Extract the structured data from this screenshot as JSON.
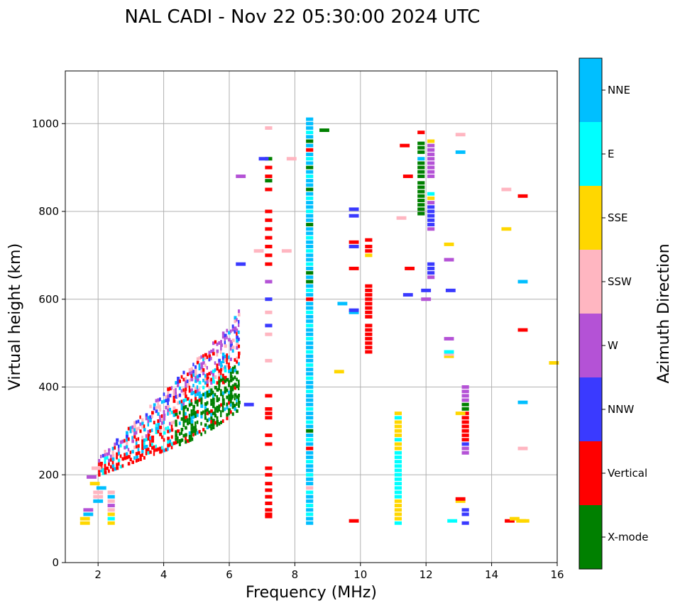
{
  "chart_data": {
    "type": "scatter",
    "title": "NAL CADI - Nov 22 05:30:00 2024 UTC",
    "xlabel": "Frequency (MHz)",
    "ylabel": "Virtual height (km)",
    "xlim": [
      1,
      16
    ],
    "ylim": [
      0,
      1120
    ],
    "xticks": [
      2,
      4,
      6,
      8,
      10,
      12,
      14,
      16
    ],
    "yticks": [
      0,
      200,
      400,
      600,
      800,
      1000
    ],
    "grid": true,
    "colorbar": {
      "label": "Azimuth Direction",
      "categories": [
        {
          "name": "X-mode",
          "color": "#008000"
        },
        {
          "name": "Vertical",
          "color": "#ff0000"
        },
        {
          "name": "NNW",
          "color": "#3a3aff"
        },
        {
          "name": "W",
          "color": "#b452d6"
        },
        {
          "name": "SSW",
          "color": "#ffb6c1"
        },
        {
          "name": "SSE",
          "color": "#ffd700"
        },
        {
          "name": "E",
          "color": "#00ffff"
        },
        {
          "name": "NNE",
          "color": "#00bfff"
        }
      ]
    },
    "series": [
      {
        "name": "column-2.4MHz",
        "f": 2.4,
        "h": [
          90,
          100,
          110,
          120,
          130,
          140,
          150,
          160
        ],
        "d": [
          "SSE",
          "E",
          "SSE",
          "SSW",
          "W",
          "SSW",
          "NNE",
          "SSW"
        ]
      },
      {
        "name": "column-7.2MHz",
        "f": 7.2,
        "h": [
          105,
          110,
          120,
          135,
          150,
          165,
          180,
          200,
          215,
          270,
          290,
          330,
          340,
          350,
          380,
          460,
          520,
          540,
          570,
          600,
          640,
          680,
          700,
          720,
          740,
          760,
          780,
          800,
          850,
          870,
          880,
          900,
          920,
          990
        ],
        "d": [
          "Vertical",
          "Vertical",
          "Vertical",
          "Vertical",
          "Vertical",
          "Vertical",
          "Vertical",
          "Vertical",
          "Vertical",
          "Vertical",
          "Vertical",
          "Vertical",
          "Vertical",
          "Vertical",
          "Vertical",
          "SSW",
          "SSW",
          "NNW",
          "SSW",
          "NNW",
          "W",
          "Vertical",
          "Vertical",
          "Vertical",
          "Vertical",
          "Vertical",
          "Vertical",
          "Vertical",
          "Vertical",
          "X-mode",
          "Vertical",
          "Vertical",
          "X-mode",
          "SSW"
        ]
      },
      {
        "name": "column-8.45MHz",
        "f": 8.45,
        "h": [
          90,
          100,
          110,
          120,
          130,
          140,
          150,
          160,
          170,
          180,
          190,
          200,
          210,
          220,
          230,
          240,
          250,
          260,
          270,
          280,
          290,
          300,
          310,
          320,
          330,
          340,
          350,
          360,
          370,
          380,
          390,
          400,
          410,
          420,
          430,
          440,
          450,
          460,
          470,
          480,
          490,
          500,
          510,
          520,
          530,
          540,
          550,
          560,
          570,
          580,
          590,
          600,
          610,
          620,
          630,
          640,
          650,
          660,
          670,
          680,
          690,
          700,
          710,
          720,
          730,
          740,
          750,
          760,
          770,
          780,
          790,
          800,
          810,
          820,
          830,
          840,
          850,
          860,
          870,
          880,
          890,
          900,
          910,
          920,
          930,
          940,
          950,
          960,
          970,
          980,
          990,
          1000,
          1010
        ],
        "d": [
          "NNE",
          "NNE",
          "E",
          "NNE",
          "E",
          "NNE",
          "NNE",
          "E",
          "SSW",
          "NNE",
          "NNE",
          "E",
          "NNE",
          "NNE",
          "E",
          "NNE",
          "NNE",
          "Vertical",
          "NNE",
          "E",
          "NNE",
          "X-mode",
          "NNE",
          "E",
          "NNE",
          "NNE",
          "E",
          "NNE",
          "NNE",
          "NNE",
          "E",
          "NNE",
          "NNE",
          "E",
          "NNE",
          "NNE",
          "E",
          "NNE",
          "NNE",
          "E",
          "NNE",
          "NNE",
          "E",
          "NNE",
          "NNE",
          "E",
          "NNE",
          "NNE",
          "E",
          "NNE",
          "NNE",
          "Vertical",
          "NNE",
          "E",
          "NNE",
          "X-mode",
          "NNE",
          "X-mode",
          "NNE",
          "E",
          "NNE",
          "NNE",
          "E",
          "NNE",
          "NNE",
          "E",
          "NNE",
          "NNE",
          "X-mode",
          "NNE",
          "NNE",
          "E",
          "NNE",
          "NNE",
          "E",
          "NNE",
          "X-mode",
          "NNE",
          "NNE",
          "E",
          "NNE",
          "X-mode",
          "NNE",
          "E",
          "NNE",
          "Vertical",
          "NNE",
          "X-mode",
          "NNE",
          "E",
          "NNE",
          "NNE",
          "NNE"
        ]
      },
      {
        "name": "column-10.25MHz",
        "f": 10.25,
        "h": [
          480,
          490,
          500,
          510,
          520,
          530,
          540,
          560,
          570,
          580,
          590,
          600,
          610,
          620,
          630,
          700,
          710,
          720,
          735
        ],
        "d": [
          "Vertical",
          "Vertical",
          "Vertical",
          "Vertical",
          "Vertical",
          "Vertical",
          "Vertical",
          "Vertical",
          "Vertical",
          "Vertical",
          "Vertical",
          "Vertical",
          "Vertical",
          "Vertical",
          "Vertical",
          "SSE",
          "Vertical",
          "Vertical",
          "Vertical"
        ]
      },
      {
        "name": "column-11.15MHz",
        "f": 11.15,
        "h": [
          90,
          100,
          110,
          120,
          130,
          140,
          150,
          160,
          170,
          180,
          190,
          200,
          210,
          220,
          230,
          240,
          250,
          260,
          270,
          280,
          290,
          300,
          310,
          320,
          330,
          340
        ],
        "d": [
          "E",
          "SSE",
          "SSE",
          "SSE",
          "SSE",
          "SSE",
          "E",
          "E",
          "E",
          "E",
          "E",
          "E",
          "E",
          "E",
          "E",
          "E",
          "E",
          "SSE",
          "SSE",
          "E",
          "SSE",
          "SSE",
          "SSE",
          "SSE",
          "E",
          "SSE"
        ]
      },
      {
        "name": "column-11.85MHz",
        "f": 11.85,
        "h": [
          795,
          805,
          815,
          825,
          835,
          845,
          855,
          865,
          880,
          890,
          900,
          910,
          920,
          935,
          945,
          955,
          980
        ],
        "d": [
          "X-mode",
          "X-mode",
          "X-mode",
          "X-mode",
          "X-mode",
          "X-mode",
          "X-mode",
          "X-mode",
          "X-mode",
          "X-mode",
          "X-mode",
          "X-mode",
          "NNE",
          "X-mode",
          "X-mode",
          "X-mode",
          "Vertical"
        ]
      },
      {
        "name": "column-12.15MHz",
        "f": 12.15,
        "h": [
          650,
          660,
          670,
          680,
          760,
          770,
          780,
          790,
          800,
          810,
          820,
          830,
          840,
          880,
          890,
          900,
          910,
          920,
          930,
          940,
          950,
          960
        ],
        "d": [
          "W",
          "NNW",
          "NNW",
          "NNW",
          "W",
          "NNW",
          "NNW",
          "NNW",
          "NNW",
          "NNW",
          "W",
          "SSE",
          "E",
          "W",
          "W",
          "W",
          "W",
          "W",
          "W",
          "W",
          "W",
          "SSE"
        ]
      },
      {
        "name": "column-13.2MHz",
        "f": 13.2,
        "h": [
          90,
          110,
          120,
          250,
          260,
          270,
          280,
          290,
          300,
          310,
          320,
          330,
          340,
          350,
          360,
          370,
          380,
          390,
          400
        ],
        "d": [
          "NNW",
          "NNW",
          "NNW",
          "W",
          "W",
          "NNW",
          "Vertical",
          "Vertical",
          "Vertical",
          "Vertical",
          "Vertical",
          "Vertical",
          "Vertical",
          "X-mode",
          "X-mode",
          "W",
          "W",
          "W",
          "W"
        ]
      },
      {
        "name": "scattered",
        "f": [
          1.6,
          1.6,
          1.7,
          1.7,
          2.0,
          2.0,
          2.0,
          2.1,
          1.9,
          1.8,
          1.95,
          6.35,
          6.35,
          6.6,
          6.9,
          7.05,
          7.75,
          7.9,
          8.9,
          9.45,
          9.35,
          9.8,
          9.8,
          9.8,
          9.8,
          9.8,
          9.8,
          9.8,
          9.8,
          11.35,
          11.45,
          11.45,
          11.5,
          11.25,
          12.0,
          12.0,
          12.7,
          12.7,
          12.75,
          12.7,
          12.7,
          12.7,
          12.7,
          13.05,
          13.05,
          13.05,
          13.05,
          13.05,
          12.8,
          14.45,
          14.45,
          14.55,
          14.7,
          14.9,
          14.95,
          14.95,
          14.95,
          14.95,
          14.95,
          15.0,
          15.9
        ],
        "h": [
          90,
          100,
          110,
          120,
          140,
          150,
          160,
          170,
          180,
          195,
          215,
          880,
          680,
          360,
          710,
          920,
          710,
          920,
          985,
          590,
          435,
          95,
          570,
          575,
          670,
          720,
          730,
          790,
          805,
          950,
          880,
          610,
          670,
          785,
          600,
          620,
          470,
          510,
          620,
          690,
          725,
          475,
          480,
          140,
          145,
          935,
          975,
          340,
          95,
          760,
          850,
          95,
          100,
          95,
          640,
          530,
          835,
          365,
          260,
          95,
          455
        ],
        "d": [
          "SSE",
          "SSE",
          "NNE",
          "W",
          "NNE",
          "SSW",
          "SSW",
          "NNE",
          "SSE",
          "W",
          "SSW",
          "W",
          "NNW",
          "NNW",
          "SSW",
          "NNW",
          "SSW",
          "SSW",
          "X-mode",
          "NNE",
          "SSE",
          "Vertical",
          "NNE",
          "NNW",
          "Vertical",
          "NNW",
          "Vertical",
          "NNW",
          "NNW",
          "Vertical",
          "Vertical",
          "NNW",
          "Vertical",
          "SSW",
          "W",
          "NNW",
          "SSE",
          "W",
          "NNW",
          "W",
          "SSE",
          "SSW",
          "E",
          "SSE",
          "Vertical",
          "NNE",
          "SSW",
          "SSE",
          "E",
          "SSE",
          "SSW",
          "Vertical",
          "SSE",
          "SSE",
          "NNE",
          "Vertical",
          "Vertical",
          "NNE",
          "SSW",
          "SSE",
          "SSE"
        ]
      }
    ],
    "cloud_note": "Dense F-layer trace from 2.0 to 6.3 MHz rising 220 to 600 km, mostly Vertical (O-mode) on the left edge and X-mode on the right edge"
  }
}
